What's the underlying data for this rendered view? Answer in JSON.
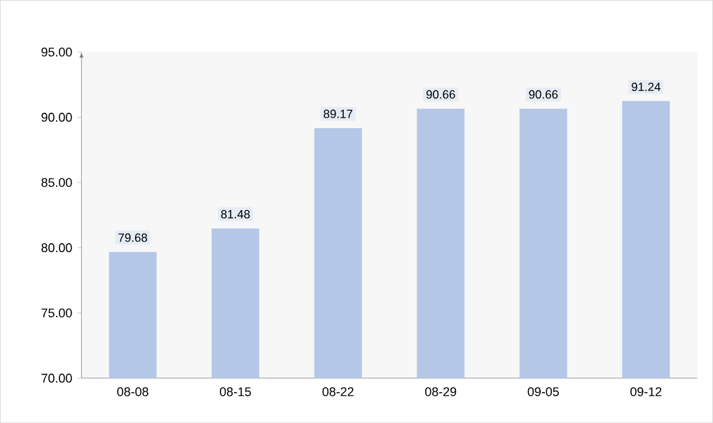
{
  "chart_data": {
    "type": "bar",
    "categories": [
      "08-08",
      "08-15",
      "08-22",
      "08-29",
      "09-05",
      "09-12"
    ],
    "values": [
      79.68,
      81.48,
      89.17,
      90.66,
      90.66,
      91.24
    ],
    "color": "#b4c7e7",
    "ylim": [
      70,
      95
    ],
    "yticks": [
      {
        "value": 70,
        "label": "70.00"
      },
      {
        "value": 75,
        "label": "75.00"
      },
      {
        "value": 80,
        "label": "80.00"
      },
      {
        "value": 85,
        "label": "85.00"
      },
      {
        "value": 90,
        "label": "90.00"
      },
      {
        "value": 95,
        "label": "95.00"
      }
    ],
    "data_labels": true,
    "grid": false
  }
}
